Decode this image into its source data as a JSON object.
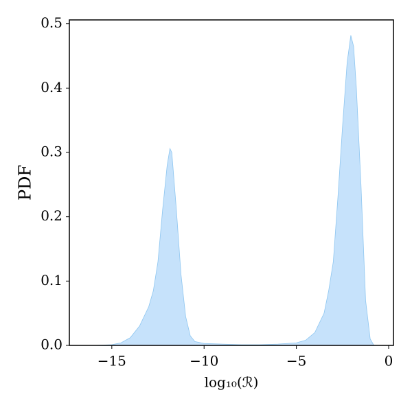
{
  "chart_data": {
    "type": "area",
    "xlabel": "log₁₀(ℛ)",
    "ylabel": "PDF",
    "x": [
      -16,
      -15,
      -14.5,
      -14,
      -13.5,
      -13,
      -12.75,
      -12.5,
      -12.25,
      -12,
      -11.85,
      -11.75,
      -11.5,
      -11.25,
      -11,
      -10.75,
      -10.5,
      -10,
      -9,
      -8,
      -7,
      -6,
      -5,
      -4.5,
      -4,
      -3.5,
      -3.25,
      -3,
      -2.75,
      -2.5,
      -2.25,
      -2.05,
      -1.9,
      -1.75,
      -1.5,
      -1.25,
      -1,
      -0.8
    ],
    "series": [
      {
        "color": "#8ec6f0",
        "values": [
          0,
          0.001,
          0.004,
          0.012,
          0.03,
          0.06,
          0.085,
          0.13,
          0.21,
          0.28,
          0.306,
          0.3,
          0.21,
          0.11,
          0.045,
          0.015,
          0.006,
          0.003,
          0.002,
          0.001,
          0.001,
          0.002,
          0.004,
          0.008,
          0.02,
          0.05,
          0.085,
          0.13,
          0.23,
          0.34,
          0.44,
          0.482,
          0.465,
          0.4,
          0.25,
          0.07,
          0.01,
          0
        ]
      }
    ],
    "fill": "#c6e2fb",
    "xlim": [
      -17.3,
      0.26
    ],
    "ylim": [
      0,
      0.506
    ],
    "xticks": [
      {
        "value": -15,
        "label": "−15"
      },
      {
        "value": -10,
        "label": "−10"
      },
      {
        "value": -5,
        "label": "−5"
      },
      0
    ],
    "yticks": [
      {
        "value": 0,
        "label": "0.0"
      },
      0.1,
      0.2,
      0.3,
      0.4,
      0.5
    ]
  }
}
